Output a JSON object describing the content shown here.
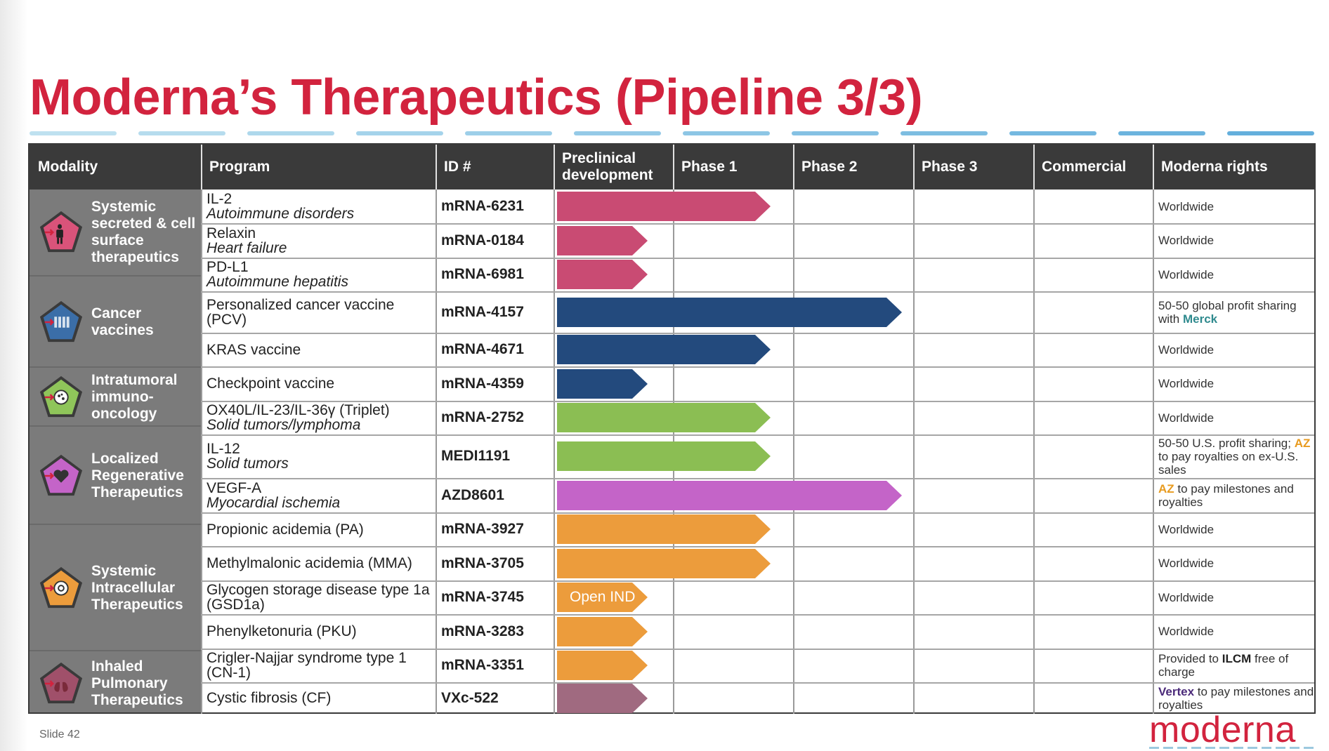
{
  "title": "Moderna’s Therapeutics (Pipeline 3/3)",
  "slide_number": "Slide 42",
  "logo_text": "moderna",
  "colors": {
    "title": "#d2233e",
    "header_bg": "#3a3a3a",
    "modality_bg": "#7b7b7b",
    "pink": "#c94b73",
    "navy": "#234a7d",
    "green": "#8bbe53",
    "purple": "#c464c8",
    "orange": "#ec9c3c",
    "mauve": "#a06a80",
    "az": "#e89b1f",
    "merck": "#2f8a8e",
    "vertex": "#4b2a7a"
  },
  "headers": {
    "modality": "Modality",
    "program": "Program",
    "id": "ID #",
    "preclinical": [
      "Preclinical",
      "development"
    ],
    "phase1": "Phase 1",
    "phase2": "Phase 2",
    "phase3": "Phase 3",
    "commercial": "Commercial",
    "rights": "Moderna rights"
  },
  "modalities": [
    {
      "name": "systemic-secreted",
      "lines": [
        "Systemic",
        "secreted & cell",
        "surface",
        "therapeutics"
      ],
      "icon": "person-pentagon-icon",
      "color": "#d9537a"
    },
    {
      "name": "cancer-vaccines",
      "lines": [
        "Cancer",
        "vaccines"
      ],
      "icon": "vaccine-pentagon-icon",
      "color": "#3b6ea8"
    },
    {
      "name": "intratumoral",
      "lines": [
        "Intratumoral",
        "immuno-",
        "oncology"
      ],
      "icon": "tumor-pentagon-icon",
      "color": "#8fc55a"
    },
    {
      "name": "localized-regenerative",
      "lines": [
        "Localized",
        "Regenerative",
        "Therapeutics"
      ],
      "icon": "heart-pentagon-icon",
      "color": "#c464c8"
    },
    {
      "name": "systemic-intracellular",
      "lines": [
        "Systemic",
        "Intracellular",
        "Therapeutics"
      ],
      "icon": "cell-pentagon-icon",
      "color": "#ec9c3c"
    },
    {
      "name": "inhaled-pulmonary",
      "lines": [
        "Inhaled",
        "Pulmonary",
        "Therapeutics"
      ],
      "icon": "lungs-pentagon-icon",
      "color": "#a0506a"
    }
  ],
  "rows": [
    {
      "program": "IL-2",
      "indication": "Autoimmune disorders",
      "id": "mRNA-6231",
      "stage": "Phase 1",
      "bar_color": "pink",
      "rights": "Worldwide"
    },
    {
      "program": "Relaxin",
      "indication": "Heart failure",
      "id": "mRNA-0184",
      "stage": "Preclinical development",
      "bar_color": "pink",
      "rights": "Worldwide"
    },
    {
      "program": "PD-L1",
      "indication": "Autoimmune hepatitis",
      "id": "mRNA-6981",
      "stage": "Preclinical development",
      "bar_color": "pink",
      "rights": "Worldwide"
    },
    {
      "program": "Personalized cancer vaccine (PCV)",
      "indication": "",
      "id": "mRNA-4157",
      "stage": "Phase 2",
      "bar_color": "navy",
      "rights_parts": [
        "50-50 global profit sharing with ",
        "Merck"
      ]
    },
    {
      "program": "KRAS vaccine",
      "indication": "",
      "id": "mRNA-4671",
      "stage": "Phase 1",
      "bar_color": "navy",
      "rights": "Worldwide"
    },
    {
      "program": "Checkpoint vaccine",
      "indication": "",
      "id": "mRNA-4359",
      "stage": "Preclinical development",
      "bar_color": "navy",
      "rights": "Worldwide"
    },
    {
      "program": "OX40L/IL-23/IL-36γ (Triplet)",
      "indication": "Solid tumors/lymphoma",
      "id": "mRNA-2752",
      "stage": "Phase 1",
      "bar_color": "green",
      "rights": "Worldwide"
    },
    {
      "program": "IL-12",
      "indication": "Solid tumors",
      "id": "MEDI1191",
      "stage": "Phase 1",
      "bar_color": "green",
      "rights_parts": [
        "50-50 U.S. profit sharing; ",
        "AZ",
        " to pay royalties on ex-U.S. sales"
      ]
    },
    {
      "program": "VEGF-A",
      "indication": "Myocardial ischemia",
      "id": "AZD8601",
      "stage": "Phase 2",
      "bar_color": "purple",
      "rights_parts": [
        "",
        "AZ",
        " to pay milestones and royalties"
      ]
    },
    {
      "program": "Propionic acidemia (PA)",
      "indication": "",
      "id": "mRNA-3927",
      "stage": "Phase 1",
      "bar_color": "orange",
      "rights": "Worldwide"
    },
    {
      "program": "Methylmalonic acidemia (MMA)",
      "indication": "",
      "id": "mRNA-3705",
      "stage": "Phase 1",
      "bar_color": "orange",
      "rights": "Worldwide"
    },
    {
      "program": "Glycogen storage disease type 1a (GSD1a)",
      "indication": "",
      "id": "mRNA-3745",
      "stage": "Preclinical development",
      "bar_color": "orange",
      "bar_label": "Open IND",
      "rights": "Worldwide"
    },
    {
      "program": "Phenylketonuria (PKU)",
      "indication": "",
      "id": "mRNA-3283",
      "stage": "Preclinical development",
      "bar_color": "orange",
      "rights": "Worldwide"
    },
    {
      "program": "Crigler-Najjar syndrome type 1 (CN-1)",
      "indication": "",
      "id": "mRNA-3351",
      "stage": "Preclinical development",
      "bar_color": "orange",
      "rights_parts": [
        "Provided to ",
        "ILCM",
        " free of charge"
      ]
    },
    {
      "program": "Cystic fibrosis (CF)",
      "indication": "",
      "id": "VXc-522",
      "stage": "Preclinical development",
      "bar_color": "mauve",
      "rights_parts": [
        "",
        "Vertex",
        " to pay milestones and royalties"
      ]
    }
  ]
}
